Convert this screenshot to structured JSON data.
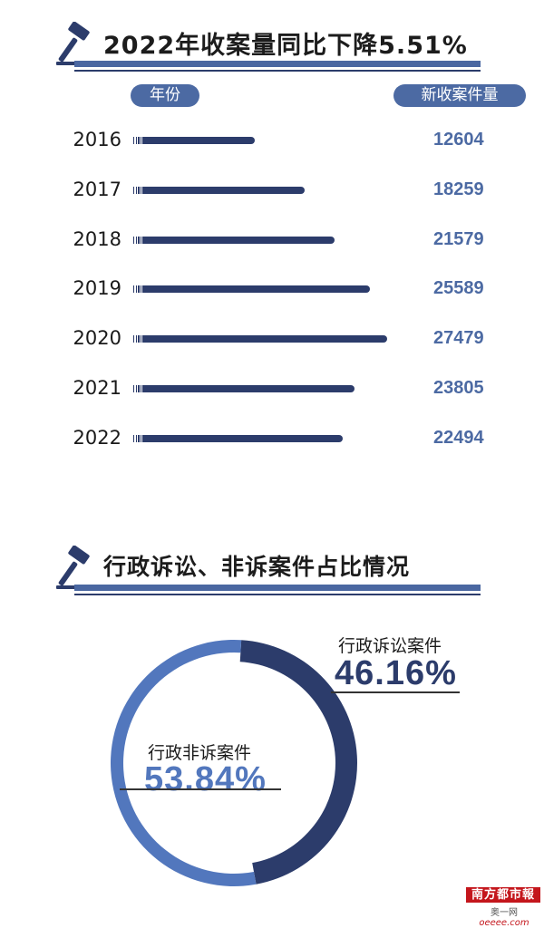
{
  "colors": {
    "dark_navy": "#2c3c6b",
    "mid_blue": "#4c6aa3",
    "light_blue": "#5277bd",
    "text_dark": "#1a1a1a",
    "brand_red": "#c4161c"
  },
  "chart_data": [
    {
      "type": "bar",
      "orientation": "horizontal",
      "title": "2022年收案量同比下降5.51%",
      "category_header": "年份",
      "value_header": "新收案件量",
      "categories": [
        "2016",
        "2017",
        "2018",
        "2019",
        "2020",
        "2021",
        "2022"
      ],
      "values": [
        12604,
        18259,
        21579,
        25589,
        27479,
        23805,
        22494
      ],
      "value_labels": [
        "12604",
        "18259",
        "21579",
        "25589",
        "27479",
        "23805",
        "22494"
      ],
      "grid": false
    },
    {
      "type": "pie",
      "style": "donut",
      "title": "行政诉讼、非诉案件占比情况",
      "slices": [
        {
          "name": "行政诉讼案件",
          "value": 46.16,
          "label": "46.16%",
          "color": "#2c3c6b"
        },
        {
          "name": "行政非诉案件",
          "value": 53.84,
          "label": "53.84%",
          "color": "#5277bd"
        }
      ]
    }
  ],
  "watermark": {
    "brand": "南方都市報",
    "site_prefix": "奥一网",
    "site_domain": "oeeee.com"
  }
}
